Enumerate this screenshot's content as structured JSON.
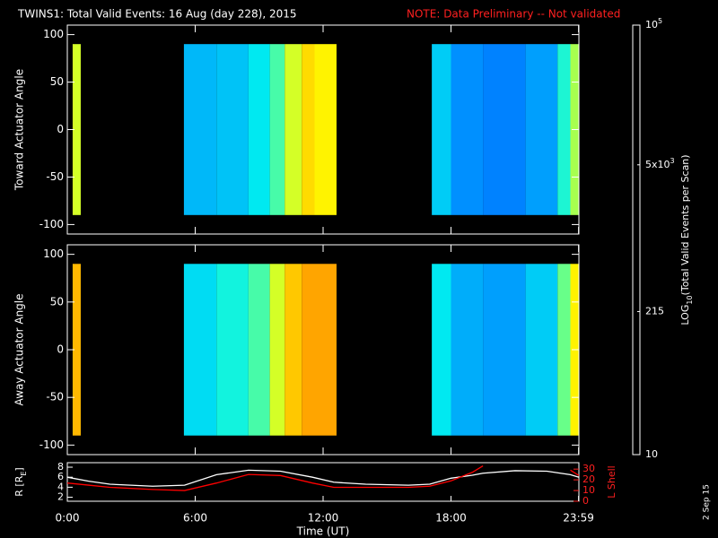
{
  "title": "TWINS1: Total Valid Events: 16 Aug (day 228), 2015",
  "note": "NOTE: Data Preliminary -- Not validated",
  "stamp": "2 Sep 15",
  "xaxis": {
    "label": "Time (UT)",
    "xlim": [
      0,
      24
    ],
    "xticks": [
      {
        "value": 0,
        "label": "0:00"
      },
      {
        "value": 6,
        "label": "6:00"
      },
      {
        "value": 12,
        "label": "12:00"
      },
      {
        "value": 18,
        "label": "18:00"
      },
      {
        "value": 23.983,
        "label": "23:59"
      }
    ]
  },
  "colorbar": {
    "label_parts": [
      "LOG",
      "10",
      "(Total Valid Events per Scan)"
    ],
    "zlim": [
      10,
      100000
    ],
    "log": true,
    "ticks": [
      {
        "value": 100000,
        "label": "10",
        "exponent": "5"
      },
      {
        "value": 5000,
        "label": "5x10",
        "exponent": "3"
      },
      {
        "value": 215,
        "label": "215"
      },
      {
        "value": 10,
        "label": "10"
      }
    ]
  },
  "panels": [
    {
      "ylabel": "Toward Actuator Angle",
      "ylim": [
        -110,
        110
      ],
      "yticks": [
        -100,
        -50,
        0,
        50,
        100
      ],
      "yspan": [
        -90,
        90
      ],
      "segments": [
        {
          "start": 0.25,
          "end": 0.63,
          "value": 4000
        },
        {
          "start": 5.47,
          "end": 7,
          "value": 400
        },
        {
          "start": 7,
          "end": 8.5,
          "value": 450
        },
        {
          "start": 8.5,
          "end": 9.5,
          "value": 700
        },
        {
          "start": 9.5,
          "end": 10.2,
          "value": 1500
        },
        {
          "start": 10.2,
          "end": 11,
          "value": 4000
        },
        {
          "start": 11,
          "end": 11.6,
          "value": 8000
        },
        {
          "start": 11.6,
          "end": 12.63,
          "value": 6000
        },
        {
          "start": 17.1,
          "end": 18,
          "value": 500
        },
        {
          "start": 18,
          "end": 19.5,
          "value": 250
        },
        {
          "start": 19.5,
          "end": 21.5,
          "value": 200
        },
        {
          "start": 21.5,
          "end": 23,
          "value": 300
        },
        {
          "start": 23,
          "end": 23.6,
          "value": 1000
        },
        {
          "start": 23.6,
          "end": 24,
          "value": 3000
        }
      ]
    },
    {
      "ylabel": "Away Actuator Angle",
      "ylim": [
        -110,
        110
      ],
      "yticks": [
        -100,
        -50,
        0,
        50,
        100
      ],
      "yspan": [
        -90,
        90
      ],
      "segments": [
        {
          "start": 0.25,
          "end": 0.63,
          "value": 12000
        },
        {
          "start": 5.47,
          "end": 7,
          "value": 600
        },
        {
          "start": 7,
          "end": 8.5,
          "value": 900
        },
        {
          "start": 8.5,
          "end": 9.5,
          "value": 1500
        },
        {
          "start": 9.5,
          "end": 10.2,
          "value": 4000
        },
        {
          "start": 10.2,
          "end": 11,
          "value": 10000
        },
        {
          "start": 11,
          "end": 12.63,
          "value": 15000
        },
        {
          "start": 17.1,
          "end": 18,
          "value": 700
        },
        {
          "start": 18,
          "end": 19.5,
          "value": 350
        },
        {
          "start": 19.5,
          "end": 21.5,
          "value": 300
        },
        {
          "start": 21.5,
          "end": 23,
          "value": 500
        },
        {
          "start": 23,
          "end": 23.6,
          "value": 2000
        },
        {
          "start": 23.6,
          "end": 24,
          "value": 6000
        }
      ]
    }
  ],
  "orbit": {
    "ylabel_parts": [
      "R [R",
      "E",
      "]"
    ],
    "ylim": [
      1.2,
      8.9
    ],
    "yticks": [
      2,
      4,
      6,
      8
    ],
    "y2label": "L Shell",
    "y2lim": [
      0,
      36
    ],
    "y2ticks": [
      0,
      10,
      20,
      30
    ],
    "x": [
      0,
      1,
      2,
      4,
      5.5,
      7,
      8.5,
      10,
      11.5,
      12.5,
      14,
      16,
      17,
      18,
      19,
      19.5,
      21,
      22.5,
      23.6,
      24
    ],
    "series": [
      {
        "color": "#ffffff",
        "values": [
          6,
          5.2,
          4.6,
          4.2,
          4.4,
          6.5,
          7.4,
          7.2,
          6,
          5,
          4.6,
          4.4,
          4.6,
          5.8,
          6.4,
          6.8,
          7.3,
          7.2,
          6.5,
          6
        ]
      },
      {
        "color": "#ff0000",
        "axis": "y2",
        "values": [
          17,
          15,
          13,
          11,
          10,
          17,
          25,
          24,
          17,
          13,
          13,
          13,
          14,
          19,
          27,
          33,
          null,
          null,
          29,
          24
        ]
      }
    ]
  }
}
